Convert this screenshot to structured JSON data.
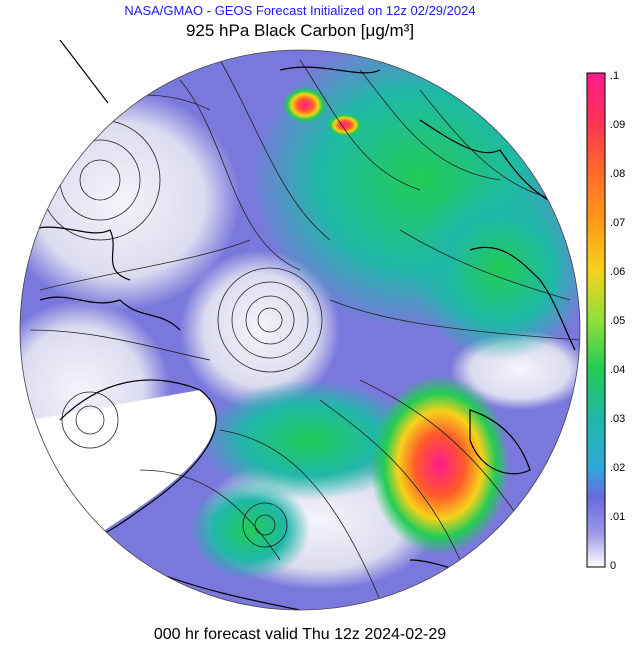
{
  "header": {
    "title": "NASA/GMAO - GEOS Forecast Initialized on 12z 02/29/2024",
    "subtitle_prefix": "925 hPa Black Carbon [",
    "subtitle_mu": "μ",
    "subtitle_unit": "g/m³]"
  },
  "footer": {
    "valid_text": "000 hr forecast valid Thu 12z 2024-02-29"
  },
  "colorbar": {
    "tick_labels": [
      ".1",
      ".09",
      ".08",
      ".07",
      ".06",
      ".05",
      ".04",
      ".03",
      ".02",
      ".01",
      "0"
    ],
    "colors": [
      "#ff1a8c",
      "#ff3355",
      "#ff6a2a",
      "#ff9a1a",
      "#f7d21a",
      "#8fe03a",
      "#22cc55",
      "#1fb8a8",
      "#2fa8d8",
      "#6a6ae0",
      "#9b96e6",
      "#ffffff"
    ]
  },
  "map": {
    "projection": "north-polar-stereographic",
    "field": "black-carbon-concentration",
    "overlay": "wind-streamlines",
    "colors": {
      "ocean_low": "#7070d8",
      "clean_air": "#e8e8f4",
      "land_outline": "#000000"
    }
  }
}
